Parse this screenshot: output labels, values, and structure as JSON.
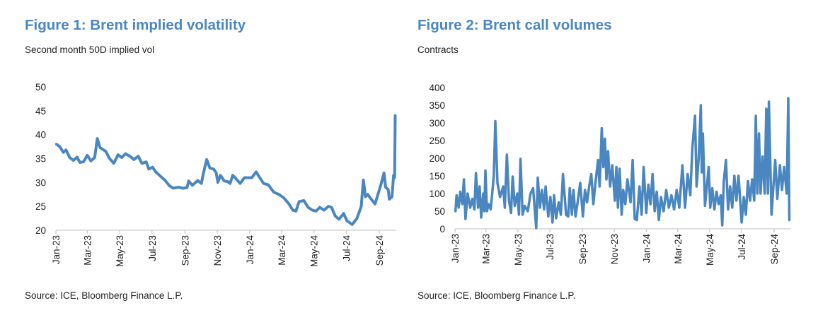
{
  "chart_data": [
    {
      "type": "line",
      "title": "Figure 1: Brent implied volatility",
      "subtitle": "Second month 50D implied vol",
      "source": "Source: ICE, Bloomberg Finance L.P.",
      "ylim": [
        20,
        50
      ],
      "yticks": [
        20,
        25,
        30,
        35,
        40,
        45,
        50
      ],
      "xlim": [
        "2023-01-01",
        "2024-10-03"
      ],
      "xticks": [
        [
          "2023-01-01",
          "Jan-23"
        ],
        [
          "2023-03-01",
          "Mar-23"
        ],
        [
          "2023-05-01",
          "May-23"
        ],
        [
          "2023-07-01",
          "Jul-23"
        ],
        [
          "2023-09-01",
          "Sep-23"
        ],
        [
          "2023-11-01",
          "Nov-23"
        ],
        [
          "2024-01-01",
          "Jan-24"
        ],
        [
          "2024-03-01",
          "Mar-24"
        ],
        [
          "2024-05-01",
          "May-24"
        ],
        [
          "2024-07-01",
          "Jul-24"
        ],
        [
          "2024-09-01",
          "Sep-24"
        ]
      ],
      "grid": false,
      "color": "#4a86c0",
      "points": [
        [
          "2023-01-02",
          38
        ],
        [
          "2023-01-08",
          37.5
        ],
        [
          "2023-01-15",
          36.3
        ],
        [
          "2023-01-20",
          36.8
        ],
        [
          "2023-01-27",
          35.2
        ],
        [
          "2023-02-03",
          34.6
        ],
        [
          "2023-02-10",
          35.3
        ],
        [
          "2023-02-15",
          34.2
        ],
        [
          "2023-02-22",
          34.3
        ],
        [
          "2023-03-01",
          35.7
        ],
        [
          "2023-03-08",
          34.5
        ],
        [
          "2023-03-15",
          35.2
        ],
        [
          "2023-03-20",
          39.2
        ],
        [
          "2023-03-25",
          37.3
        ],
        [
          "2023-04-05",
          36.5
        ],
        [
          "2023-04-12",
          35
        ],
        [
          "2023-04-20",
          34
        ],
        [
          "2023-04-28",
          35.8
        ],
        [
          "2023-05-05",
          35.2
        ],
        [
          "2023-05-12",
          36
        ],
        [
          "2023-05-20",
          35.5
        ],
        [
          "2023-05-28",
          34.8
        ],
        [
          "2023-06-05",
          35.5
        ],
        [
          "2023-06-12",
          34
        ],
        [
          "2023-06-20",
          34.3
        ],
        [
          "2023-06-25",
          32.8
        ],
        [
          "2023-07-02",
          33.2
        ],
        [
          "2023-07-08",
          32.2
        ],
        [
          "2023-07-15",
          31.5
        ],
        [
          "2023-07-25",
          30.5
        ],
        [
          "2023-08-03",
          29.3
        ],
        [
          "2023-08-10",
          28.8
        ],
        [
          "2023-08-20",
          29
        ],
        [
          "2023-08-28",
          28.8
        ],
        [
          "2023-09-05",
          28.9
        ],
        [
          "2023-09-08",
          30.3
        ],
        [
          "2023-09-15",
          29.4
        ],
        [
          "2023-09-25",
          30.4
        ],
        [
          "2023-10-02",
          29.8
        ],
        [
          "2023-10-06",
          32
        ],
        [
          "2023-10-12",
          34.8
        ],
        [
          "2023-10-18",
          33
        ],
        [
          "2023-10-25",
          32.8
        ],
        [
          "2023-10-30",
          32
        ],
        [
          "2023-11-02",
          30
        ],
        [
          "2023-11-07",
          31.5
        ],
        [
          "2023-11-14",
          30.3
        ],
        [
          "2023-11-20",
          30.2
        ],
        [
          "2023-11-25",
          29.8
        ],
        [
          "2023-11-30",
          31.5
        ],
        [
          "2023-12-06",
          30.8
        ],
        [
          "2023-12-14",
          29.8
        ],
        [
          "2023-12-22",
          31
        ],
        [
          "2024-01-05",
          31
        ],
        [
          "2024-01-13",
          32.2
        ],
        [
          "2024-01-20",
          31
        ],
        [
          "2024-01-27",
          29.8
        ],
        [
          "2024-02-05",
          29.5
        ],
        [
          "2024-02-15",
          28
        ],
        [
          "2024-02-25",
          27.5
        ],
        [
          "2024-03-05",
          26.8
        ],
        [
          "2024-03-15",
          25.5
        ],
        [
          "2024-03-22",
          24.2
        ],
        [
          "2024-03-28",
          24
        ],
        [
          "2024-04-03",
          26
        ],
        [
          "2024-04-12",
          26.2
        ],
        [
          "2024-04-20",
          24.8
        ],
        [
          "2024-04-28",
          24.2
        ],
        [
          "2024-05-05",
          24
        ],
        [
          "2024-05-12",
          24.8
        ],
        [
          "2024-05-20",
          24.2
        ],
        [
          "2024-05-28",
          25
        ],
        [
          "2024-06-03",
          24.8
        ],
        [
          "2024-06-10",
          23
        ],
        [
          "2024-06-17",
          22.3
        ],
        [
          "2024-06-26",
          23.5
        ],
        [
          "2024-07-02",
          22
        ],
        [
          "2024-07-12",
          21.2
        ],
        [
          "2024-07-21",
          22.5
        ],
        [
          "2024-07-29",
          25
        ],
        [
          "2024-08-02",
          30.5
        ],
        [
          "2024-08-06",
          27
        ],
        [
          "2024-08-10",
          27.5
        ],
        [
          "2024-08-17",
          26.5
        ],
        [
          "2024-08-24",
          25.5
        ],
        [
          "2024-09-04",
          29.5
        ],
        [
          "2024-09-10",
          32
        ],
        [
          "2024-09-13",
          29
        ],
        [
          "2024-09-18",
          28.5
        ],
        [
          "2024-09-20",
          26.5
        ],
        [
          "2024-09-25",
          27
        ],
        [
          "2024-09-28",
          31.5
        ],
        [
          "2024-09-30",
          31
        ],
        [
          "2024-10-01",
          44
        ]
      ]
    },
    {
      "type": "line",
      "title": "Figure 2: Brent call volumes",
      "subtitle": "Contracts",
      "source": "Source: ICE, Bloomberg Finance L.P.",
      "ylim": [
        0,
        400
      ],
      "yticks": [
        0,
        50,
        100,
        150,
        200,
        250,
        300,
        350,
        400
      ],
      "xlim": [
        "2023-01-01",
        "2024-10-02"
      ],
      "xticks": [
        [
          "2023-01-01",
          "Jan-23"
        ],
        [
          "2023-03-01",
          "Mar-23"
        ],
        [
          "2023-05-01",
          "May-23"
        ],
        [
          "2023-07-01",
          "Jul-23"
        ],
        [
          "2023-09-01",
          "Sep-23"
        ],
        [
          "2023-11-01",
          "Nov-23"
        ],
        [
          "2024-01-01",
          "Jan-24"
        ],
        [
          "2024-03-01",
          "Mar-24"
        ],
        [
          "2024-05-01",
          "May-24"
        ],
        [
          "2024-07-01",
          "Jul-24"
        ],
        [
          "2024-09-01",
          "Sep-24"
        ]
      ],
      "grid": false,
      "color": "#4a86c0",
      "points": [
        [
          "2023-01-02",
          50
        ],
        [
          "2023-01-04",
          95
        ],
        [
          "2023-01-08",
          60
        ],
        [
          "2023-01-11",
          105
        ],
        [
          "2023-01-15",
          70
        ],
        [
          "2023-01-18",
          140
        ],
        [
          "2023-01-21",
          28
        ],
        [
          "2023-01-25",
          100
        ],
        [
          "2023-01-30",
          60
        ],
        [
          "2023-02-03",
          85
        ],
        [
          "2023-02-07",
          55
        ],
        [
          "2023-02-10",
          158
        ],
        [
          "2023-02-14",
          60
        ],
        [
          "2023-02-17",
          120
        ],
        [
          "2023-02-20",
          32
        ],
        [
          "2023-02-24",
          100
        ],
        [
          "2023-02-26",
          50
        ],
        [
          "2023-02-28",
          165
        ],
        [
          "2023-03-03",
          50
        ],
        [
          "2023-03-06",
          70
        ],
        [
          "2023-03-10",
          55
        ],
        [
          "2023-03-13",
          100
        ],
        [
          "2023-03-16",
          150
        ],
        [
          "2023-03-19",
          305
        ],
        [
          "2023-03-23",
          130
        ],
        [
          "2023-03-28",
          90
        ],
        [
          "2023-04-03",
          120
        ],
        [
          "2023-04-06",
          60
        ],
        [
          "2023-04-10",
          210
        ],
        [
          "2023-04-14",
          80
        ],
        [
          "2023-04-18",
          45
        ],
        [
          "2023-04-21",
          148
        ],
        [
          "2023-04-25",
          65
        ],
        [
          "2023-04-30",
          100
        ],
        [
          "2023-05-03",
          40
        ],
        [
          "2023-05-06",
          198
        ],
        [
          "2023-05-10",
          40
        ],
        [
          "2023-05-14",
          65
        ],
        [
          "2023-05-20",
          50
        ],
        [
          "2023-05-25",
          100
        ],
        [
          "2023-05-30",
          115
        ],
        [
          "2023-06-05",
          2
        ],
        [
          "2023-06-08",
          145
        ],
        [
          "2023-06-12",
          60
        ],
        [
          "2023-06-16",
          110
        ],
        [
          "2023-06-20",
          55
        ],
        [
          "2023-06-23",
          120
        ],
        [
          "2023-06-28",
          35
        ],
        [
          "2023-07-02",
          90
        ],
        [
          "2023-07-06",
          18
        ],
        [
          "2023-07-09",
          95
        ],
        [
          "2023-07-13",
          30
        ],
        [
          "2023-07-18",
          75
        ],
        [
          "2023-07-22",
          40
        ],
        [
          "2023-07-26",
          155
        ],
        [
          "2023-08-01",
          40
        ],
        [
          "2023-08-05",
          35
        ],
        [
          "2023-08-08",
          115
        ],
        [
          "2023-08-12",
          40
        ],
        [
          "2023-08-15",
          110
        ],
        [
          "2023-08-19",
          35
        ],
        [
          "2023-08-23",
          75
        ],
        [
          "2023-08-28",
          130
        ],
        [
          "2023-09-02",
          35
        ],
        [
          "2023-09-06",
          110
        ],
        [
          "2023-09-10",
          75
        ],
        [
          "2023-09-14",
          120
        ],
        [
          "2023-09-18",
          155
        ],
        [
          "2023-09-22",
          70
        ],
        [
          "2023-09-26",
          130
        ],
        [
          "2023-10-01",
          195
        ],
        [
          "2023-10-04",
          120
        ],
        [
          "2023-10-08",
          285
        ],
        [
          "2023-10-11",
          175
        ],
        [
          "2023-10-14",
          255
        ],
        [
          "2023-10-17",
          140
        ],
        [
          "2023-10-20",
          220
        ],
        [
          "2023-10-24",
          120
        ],
        [
          "2023-10-28",
          180
        ],
        [
          "2023-11-02",
          80
        ],
        [
          "2023-11-05",
          175
        ],
        [
          "2023-11-08",
          60
        ],
        [
          "2023-11-11",
          170
        ],
        [
          "2023-11-15",
          40
        ],
        [
          "2023-11-18",
          110
        ],
        [
          "2023-11-22",
          70
        ],
        [
          "2023-11-26",
          140
        ],
        [
          "2023-12-02",
          75
        ],
        [
          "2023-12-06",
          195
        ],
        [
          "2023-12-10",
          28
        ],
        [
          "2023-12-14",
          25
        ],
        [
          "2023-12-19",
          120
        ],
        [
          "2023-12-23",
          40
        ],
        [
          "2023-12-27",
          175
        ],
        [
          "2024-01-01",
          45
        ],
        [
          "2024-01-05",
          125
        ],
        [
          "2024-01-09",
          70
        ],
        [
          "2024-01-13",
          155
        ],
        [
          "2024-01-17",
          50
        ],
        [
          "2024-01-21",
          105
        ],
        [
          "2024-01-25",
          25
        ],
        [
          "2024-01-29",
          90
        ],
        [
          "2024-02-03",
          50
        ],
        [
          "2024-02-08",
          110
        ],
        [
          "2024-02-13",
          60
        ],
        [
          "2024-02-18",
          95
        ],
        [
          "2024-02-23",
          55
        ],
        [
          "2024-02-28",
          110
        ],
        [
          "2024-03-04",
          60
        ],
        [
          "2024-03-10",
          180
        ],
        [
          "2024-03-15",
          60
        ],
        [
          "2024-03-20",
          155
        ],
        [
          "2024-03-25",
          95
        ],
        [
          "2024-03-29",
          230
        ],
        [
          "2024-04-03",
          320
        ],
        [
          "2024-04-06",
          120
        ],
        [
          "2024-04-10",
          200
        ],
        [
          "2024-04-14",
          350
        ],
        [
          "2024-04-16",
          160
        ],
        [
          "2024-04-18",
          270
        ],
        [
          "2024-04-22",
          65
        ],
        [
          "2024-04-29",
          175
        ],
        [
          "2024-05-02",
          60
        ],
        [
          "2024-05-06",
          115
        ],
        [
          "2024-05-10",
          55
        ],
        [
          "2024-05-14",
          105
        ],
        [
          "2024-05-18",
          70
        ],
        [
          "2024-05-22",
          95
        ],
        [
          "2024-05-25",
          10
        ],
        [
          "2024-05-28",
          135
        ],
        [
          "2024-06-01",
          195
        ],
        [
          "2024-06-05",
          55
        ],
        [
          "2024-06-09",
          120
        ],
        [
          "2024-06-13",
          60
        ],
        [
          "2024-06-17",
          150
        ],
        [
          "2024-06-21",
          80
        ],
        [
          "2024-06-25",
          150
        ],
        [
          "2024-07-01",
          18
        ],
        [
          "2024-07-05",
          90
        ],
        [
          "2024-07-09",
          40
        ],
        [
          "2024-07-13",
          135
        ],
        [
          "2024-07-17",
          80
        ],
        [
          "2024-07-21",
          140
        ],
        [
          "2024-07-25",
          80
        ],
        [
          "2024-07-28",
          320
        ],
        [
          "2024-07-31",
          100
        ],
        [
          "2024-08-03",
          270
        ],
        [
          "2024-08-06",
          100
        ],
        [
          "2024-08-10",
          205
        ],
        [
          "2024-08-14",
          100
        ],
        [
          "2024-08-17",
          340
        ],
        [
          "2024-08-20",
          100
        ],
        [
          "2024-08-22",
          360
        ],
        [
          "2024-08-27",
          40
        ],
        [
          "2024-09-03",
          195
        ],
        [
          "2024-09-07",
          85
        ],
        [
          "2024-09-12",
          180
        ],
        [
          "2024-09-16",
          110
        ],
        [
          "2024-09-20",
          175
        ],
        [
          "2024-09-25",
          100
        ],
        [
          "2024-09-28",
          370
        ],
        [
          "2024-09-30",
          25
        ]
      ]
    }
  ]
}
